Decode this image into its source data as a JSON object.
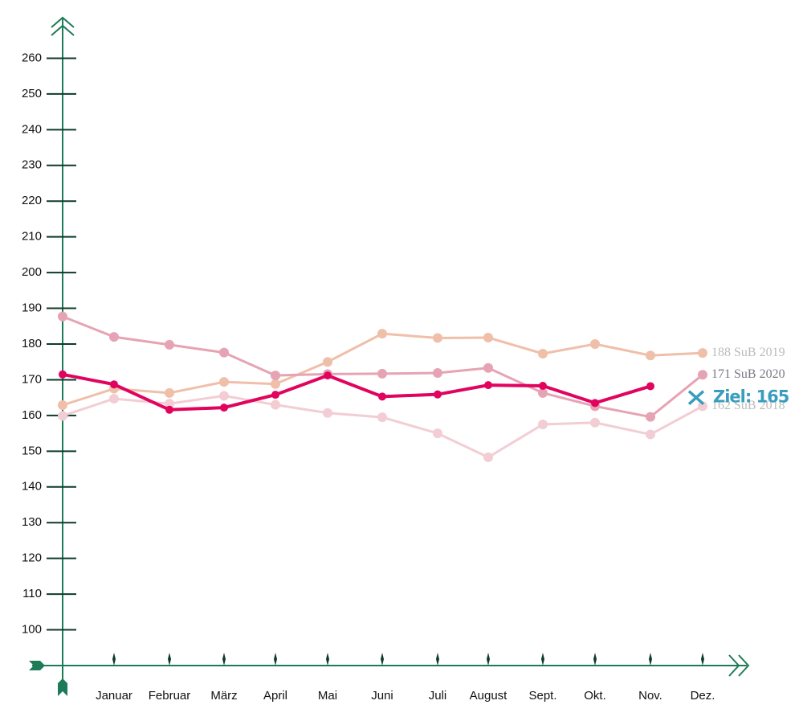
{
  "chart_data": {
    "type": "line",
    "categories": [
      null,
      "Januar",
      "Februar",
      "März",
      "April",
      "Mai",
      "Juni",
      "Juli",
      "August",
      "Sept.",
      "Okt.",
      "Nov.",
      "Dez."
    ],
    "series": [
      {
        "name": "162 SuB 2018",
        "color": "#f2cdd4",
        "values": [
          159.9,
          164.7,
          163.3,
          165.5,
          163,
          160.7,
          159.5,
          155,
          148.3,
          157.5,
          158,
          154.7,
          162.6
        ]
      },
      {
        "name": "188 SuB 2019",
        "color": "#efbfa9",
        "values": [
          162.9,
          167.5,
          166.3,
          169.4,
          168.8,
          175,
          182.9,
          181.7,
          181.8,
          177.3,
          180,
          176.8,
          177.5
        ]
      },
      {
        "name": "171 SuB 2020",
        "color": "#e6a3b3",
        "values": [
          187.7,
          182,
          179.8,
          177.6,
          171.2,
          171.6,
          171.7,
          171.9,
          173.3,
          166.3,
          162.6,
          159.6,
          171.4
        ]
      },
      {
        "color": "#e0045f",
        "values": [
          171.5,
          168.7,
          161.6,
          162.2,
          165.8,
          171.2,
          165.3,
          165.9,
          168.5,
          168.3,
          163.5,
          168.2,
          null
        ]
      }
    ],
    "target": {
      "value": 165,
      "label": "Ziel: 165",
      "color": "#3a9dbd"
    },
    "ylim": [
      90,
      270
    ],
    "yticks": [
      100,
      110,
      120,
      130,
      140,
      150,
      160,
      170,
      180,
      190,
      200,
      210,
      220,
      230,
      240,
      250,
      260
    ],
    "grid": false
  }
}
